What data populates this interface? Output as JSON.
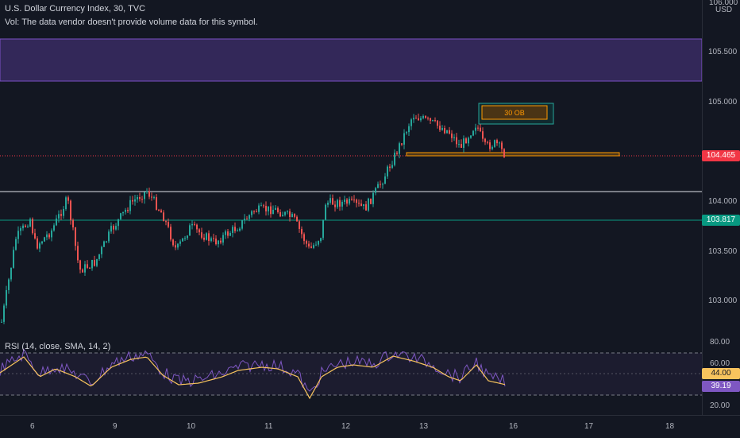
{
  "header": {
    "title": "U.S. Dollar Currency Index, 30, TVC",
    "volume_note": "Vol: The data vendor doesn't provide volume data for this symbol."
  },
  "price_axis": {
    "currency": "USD",
    "top_partial": "106.000",
    "ticks": [
      "105.500",
      "105.000",
      "104.000",
      "103.500",
      "103.000"
    ]
  },
  "price_tags": {
    "current": "104.465",
    "current_color": "#f23645",
    "level": "103.817",
    "level_color": "#089981"
  },
  "orderblock_label": "30 OB",
  "rsi": {
    "title": "RSI (14, close, SMA, 14, 2)",
    "ticks": [
      "80.00",
      "60.00",
      "20.00"
    ],
    "sma_value": "44.00",
    "rsi_value": "39.19"
  },
  "time_axis": {
    "ticks": [
      "6",
      "9",
      "10",
      "11",
      "12",
      "13",
      "16",
      "17",
      "18"
    ]
  },
  "colors": {
    "up": "#26a69a",
    "down": "#ef5350",
    "zone": "#5d3e8f",
    "rsi_line": "#7e57c2",
    "rsi_ma": "#f7c35d"
  }
}
